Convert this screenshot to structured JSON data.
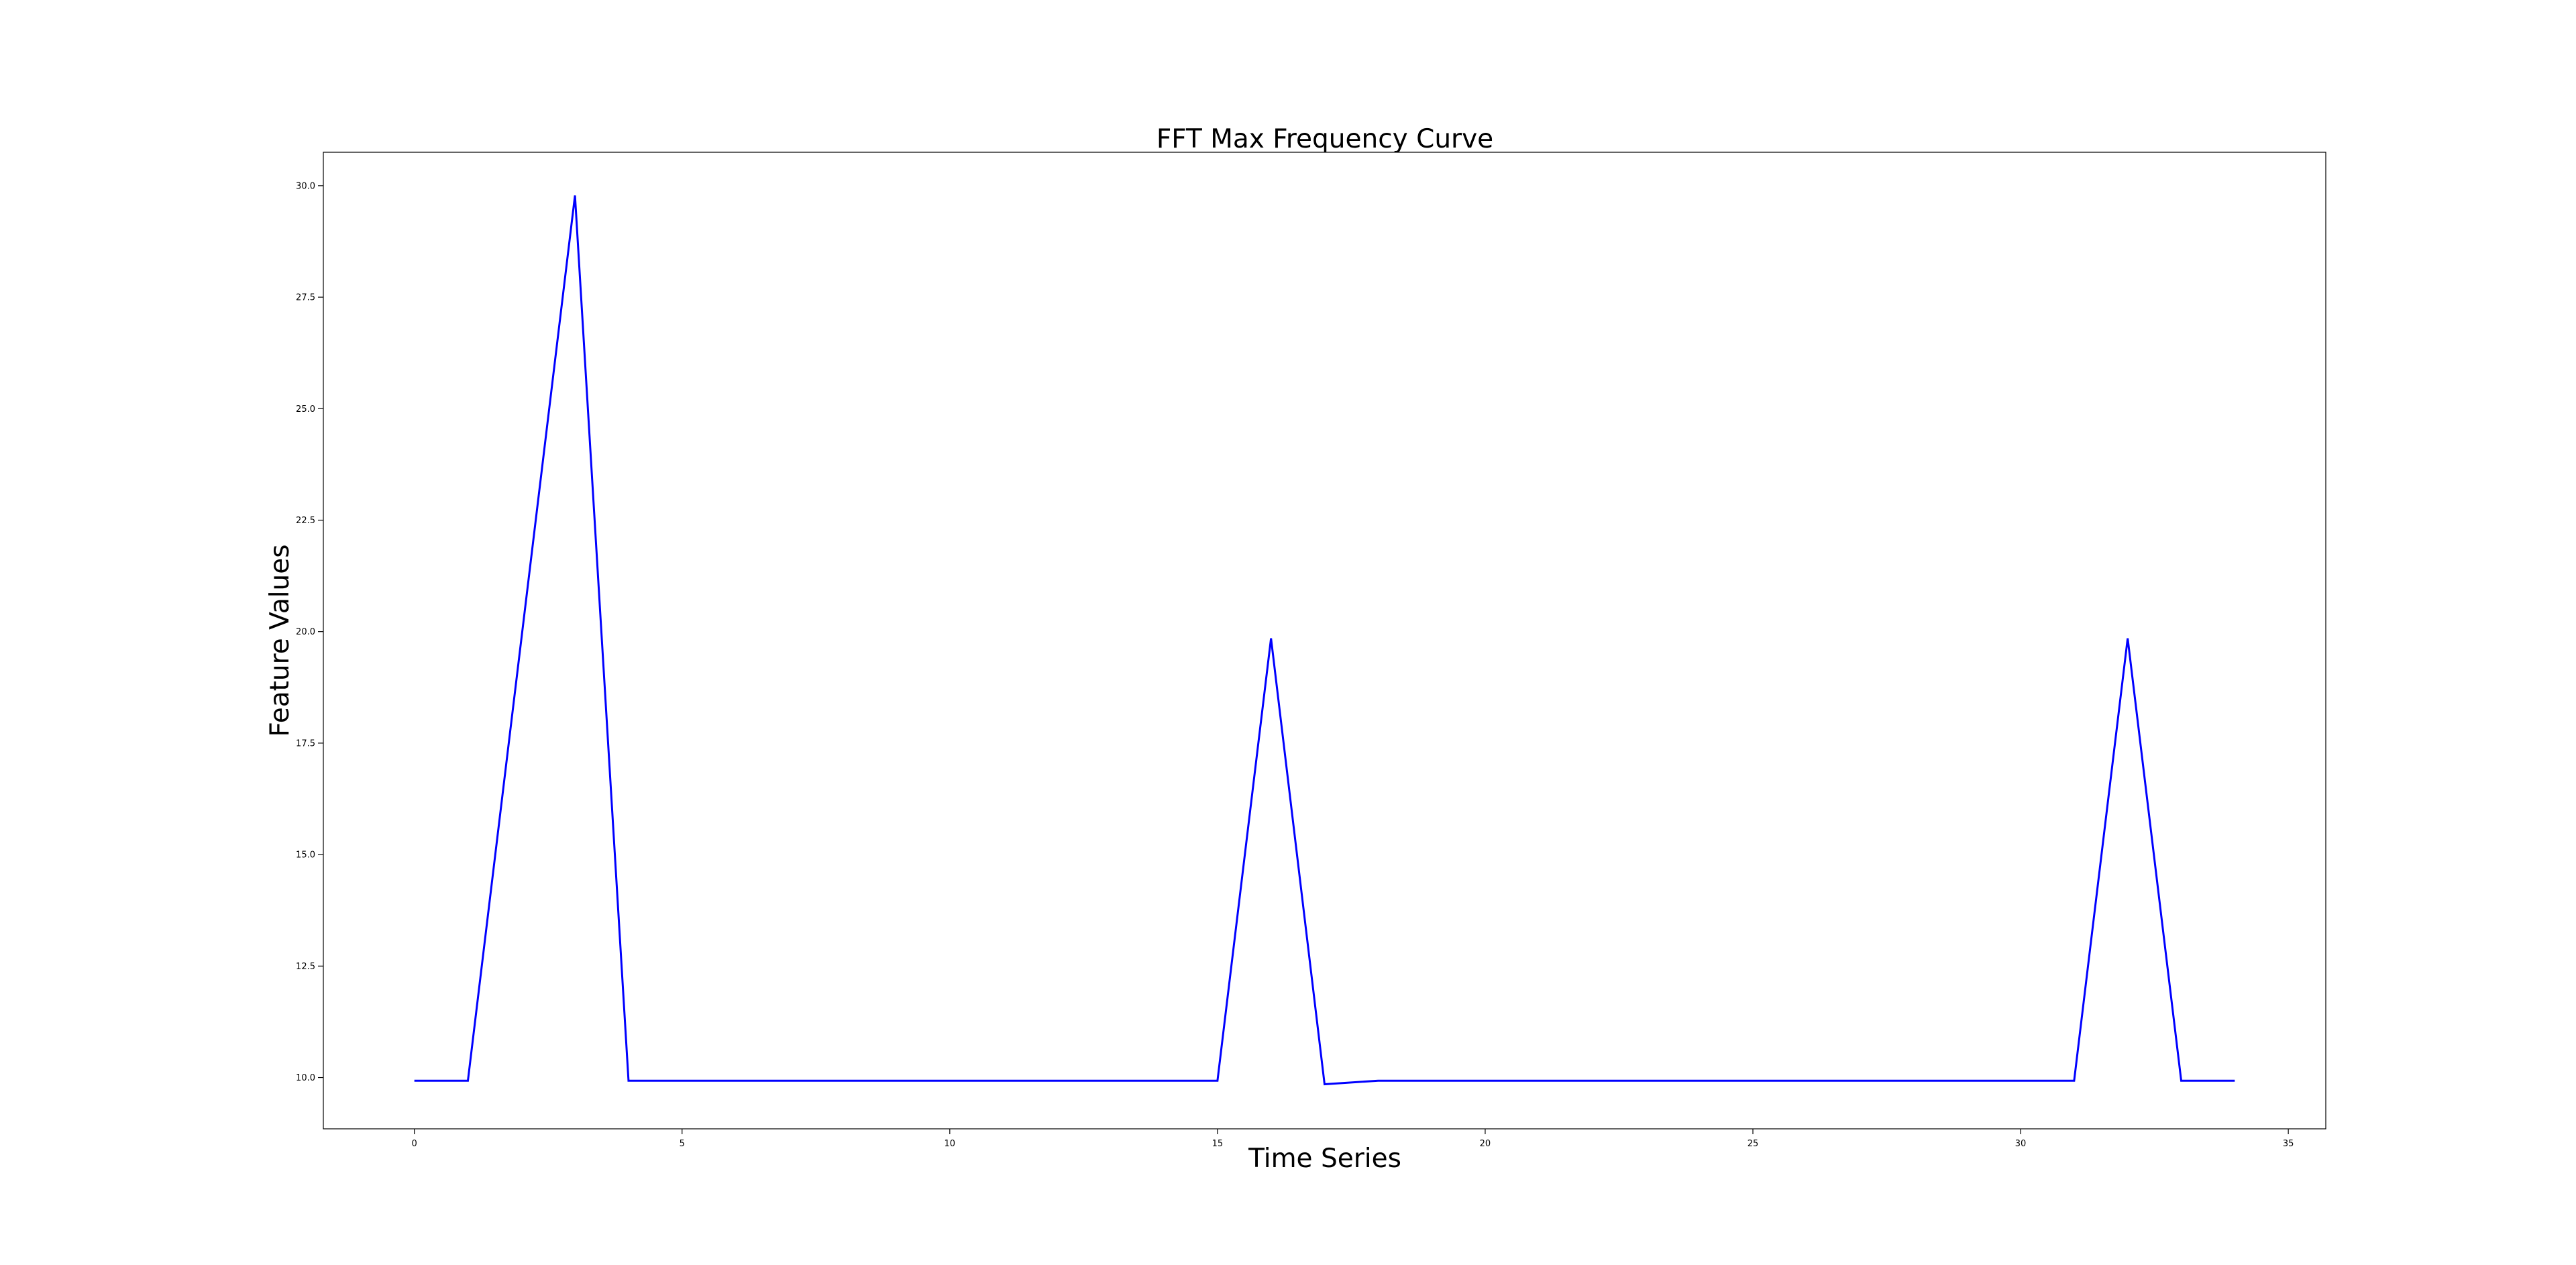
{
  "chart_data": {
    "type": "line",
    "title": "FFT Max Frequency Curve",
    "xlabel": "Time Series",
    "ylabel": "Feature Values",
    "xlim": [
      -1.7,
      35.7
    ],
    "ylim": [
      8.85,
      30.75
    ],
    "xticks": [
      0,
      5,
      10,
      15,
      20,
      25,
      30,
      35
    ],
    "yticks": [
      10.0,
      12.5,
      15.0,
      17.5,
      20.0,
      22.5,
      25.0,
      27.5,
      30.0
    ],
    "grid": false,
    "legend": "none",
    "series": [
      {
        "color": "#0000ff",
        "x": [
          0,
          1,
          2,
          3,
          4,
          5,
          6,
          7,
          8,
          9,
          10,
          11,
          12,
          13,
          14,
          15,
          16,
          17,
          18,
          19,
          20,
          21,
          22,
          23,
          24,
          25,
          26,
          27,
          28,
          29,
          30,
          31,
          32,
          33,
          34
        ],
        "values": [
          9.93,
          9.93,
          19.85,
          29.78,
          9.93,
          9.93,
          9.93,
          9.93,
          9.93,
          9.93,
          9.93,
          9.93,
          9.93,
          9.93,
          9.93,
          9.93,
          19.85,
          9.85,
          9.93,
          9.93,
          9.93,
          9.93,
          9.93,
          9.93,
          9.93,
          9.93,
          9.93,
          9.93,
          9.93,
          9.93,
          9.93,
          9.93,
          19.85,
          9.93,
          9.93
        ]
      }
    ]
  }
}
